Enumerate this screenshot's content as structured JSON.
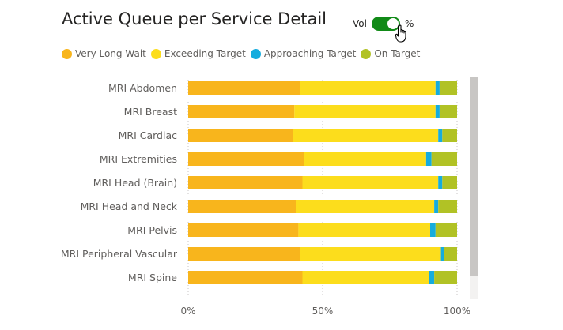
{
  "header": {
    "title": "Active Queue per Service Detail",
    "toggle_left_label": "Vol",
    "toggle_right_label": "%",
    "toggle_state": "on"
  },
  "colors": {
    "very_long_wait": "#F8B51C",
    "exceeding_target": "#FCDD1C",
    "approaching_target": "#15ACDE",
    "on_target": "#B1C225",
    "toggle_on": "#118A17"
  },
  "chart_data": {
    "type": "bar",
    "orientation": "horizontal",
    "stacked": "100%",
    "title": "Active Queue per Service Detail",
    "categories": [
      "MRI Abdomen",
      "MRI Breast",
      "MRI Cardiac",
      "MRI Extremities",
      "MRI Head (Brain)",
      "MRI Head and Neck",
      "MRI Pelvis",
      "MRI Peripheral Vascular",
      "MRI Spine"
    ],
    "series": [
      {
        "name": "Very Long Wait",
        "color": "#F8B51C",
        "values": [
          41.5,
          39.5,
          39,
          43,
          42.5,
          40,
          41,
          41.5,
          42.5
        ]
      },
      {
        "name": "Exceeding Target",
        "color": "#FCDD1C",
        "values": [
          50.5,
          52.5,
          54,
          45.5,
          50.5,
          51.5,
          49,
          52.5,
          47
        ]
      },
      {
        "name": "Approaching Target",
        "color": "#15ACDE",
        "values": [
          1.5,
          1.5,
          1.5,
          2,
          1.5,
          1.5,
          2,
          1,
          2
        ]
      },
      {
        "name": "On Target",
        "color": "#B1C225",
        "values": [
          6.5,
          6.5,
          5.5,
          9.5,
          5.5,
          7,
          8,
          5,
          8.5
        ]
      }
    ],
    "x_ticks": [
      "0%",
      "50%",
      "100%"
    ],
    "xlim": [
      0,
      100
    ],
    "grid": true,
    "legend_position": "top-left"
  }
}
